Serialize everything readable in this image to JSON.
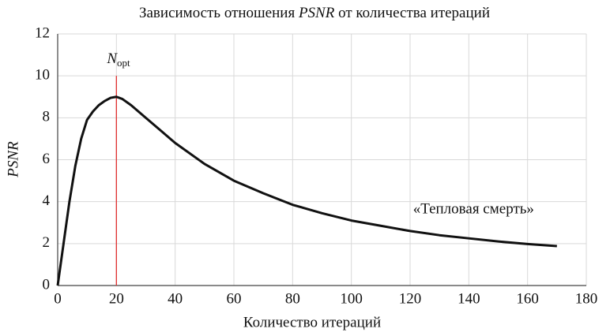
{
  "chart_data": {
    "type": "line",
    "title": "Зависимость отношения PSNR от количества итераций",
    "xlabel": "Количество итераций",
    "ylabel": "PSNR",
    "x": [
      0,
      2,
      4,
      6,
      8,
      10,
      12,
      14,
      16,
      18,
      20,
      22,
      25,
      30,
      35,
      40,
      50,
      60,
      70,
      80,
      90,
      100,
      110,
      120,
      130,
      140,
      150,
      160,
      170
    ],
    "series": [
      {
        "color": "#111111",
        "values": [
          0,
          2,
          4,
          5.7,
          7,
          7.9,
          8.3,
          8.6,
          8.8,
          8.95,
          9,
          8.9,
          8.6,
          8,
          7.4,
          6.8,
          5.8,
          5,
          4.4,
          3.85,
          3.45,
          3.1,
          2.85,
          2.6,
          2.4,
          2.25,
          2.1,
          1.98,
          1.88
        ]
      }
    ],
    "xlim": [
      0,
      180
    ],
    "ylim": [
      0,
      12
    ],
    "xticks": [
      0,
      20,
      40,
      60,
      80,
      100,
      120,
      140,
      160,
      180
    ],
    "yticks": [
      0,
      2,
      4,
      6,
      8,
      10,
      12
    ],
    "grid": true,
    "vline": {
      "x": 20,
      "ymax": 10,
      "color": "#e03030",
      "label": "N",
      "sublabel": "opt"
    },
    "annotation": {
      "text": "«Тепловая смерть»",
      "x": 121,
      "y": 3.6
    }
  }
}
